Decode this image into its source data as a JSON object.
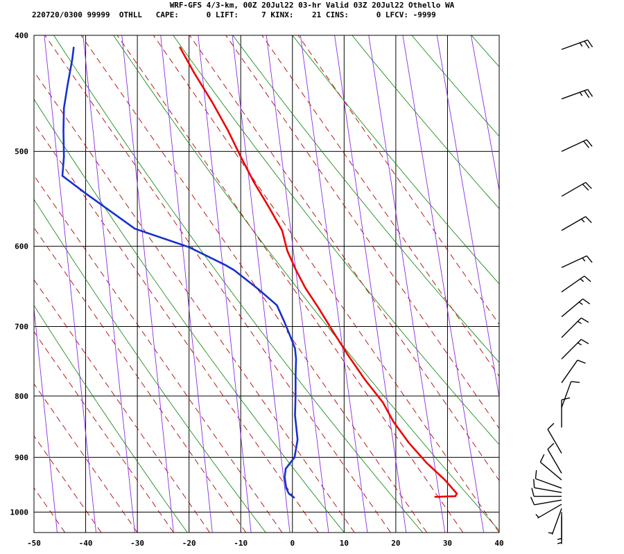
{
  "header": {
    "line1": "WRF-GFS 4/3-km, 00Z 20Jul22 03-hr Valid 03Z 20Jul22 Othello WA",
    "line2": "220720/0300 99999  OTHLL   CAPE:      0 LIFT:     7 KINX:    21 CINS:      0 LFCV: -9999"
  },
  "chart_data": {
    "type": "line",
    "chart_kind": "skew-T log-P sounding diagram",
    "xlim": [
      -50,
      40
    ],
    "ylim_pressure": [
      1040,
      400
    ],
    "y_scale": "log",
    "grid": true,
    "x_ticks": [
      "-50",
      "-40",
      "-30",
      "-20",
      "-10",
      "0",
      "10",
      "20",
      "30",
      "40"
    ],
    "y_ticks": [
      "400",
      "500",
      "600",
      "700",
      "800",
      "900",
      "1000"
    ],
    "series": [
      {
        "color": "#ee0000",
        "points": [
          {
            "t": 27.5,
            "p": 971
          },
          {
            "t": 31.5,
            "p": 970
          },
          {
            "t": 31.8,
            "p": 965
          },
          {
            "t": 29.5,
            "p": 940
          },
          {
            "t": 26.0,
            "p": 910
          },
          {
            "t": 22.5,
            "p": 875
          },
          {
            "t": 19.5,
            "p": 840
          },
          {
            "t": 17.5,
            "p": 810
          },
          {
            "t": 14.0,
            "p": 775
          },
          {
            "t": 10.8,
            "p": 740
          },
          {
            "t": 7.7,
            "p": 705
          },
          {
            "t": 5.0,
            "p": 675
          },
          {
            "t": 2.5,
            "p": 650
          },
          {
            "t": 0.6,
            "p": 627
          },
          {
            "t": -1.0,
            "p": 605
          },
          {
            "t": -2.0,
            "p": 582
          },
          {
            "t": -4.5,
            "p": 557
          },
          {
            "t": -7.5,
            "p": 530
          },
          {
            "t": -10.0,
            "p": 505
          },
          {
            "t": -12.5,
            "p": 480
          },
          {
            "t": -15.5,
            "p": 455
          },
          {
            "t": -19.0,
            "p": 430
          },
          {
            "t": -21.8,
            "p": 409
          }
        ]
      },
      {
        "color": "#1530d0",
        "points": [
          {
            "t": 0.4,
            "p": 973
          },
          {
            "t": -0.7,
            "p": 965
          },
          {
            "t": -1.2,
            "p": 955
          },
          {
            "t": -1.5,
            "p": 935
          },
          {
            "t": -1.3,
            "p": 920
          },
          {
            "t": 0.4,
            "p": 900
          },
          {
            "t": 1.0,
            "p": 870
          },
          {
            "t": 0.5,
            "p": 830
          },
          {
            "t": 0.6,
            "p": 800
          },
          {
            "t": 0.6,
            "p": 770
          },
          {
            "t": 0.7,
            "p": 745
          },
          {
            "t": 0.5,
            "p": 730
          },
          {
            "t": -0.6,
            "p": 710
          },
          {
            "t": -1.6,
            "p": 693
          },
          {
            "t": -3.0,
            "p": 672
          },
          {
            "t": -6.5,
            "p": 652
          },
          {
            "t": -11.3,
            "p": 628
          },
          {
            "t": -13.0,
            "p": 622
          },
          {
            "t": -20.0,
            "p": 601
          },
          {
            "t": -30.5,
            "p": 580
          },
          {
            "t": -40.0,
            "p": 542
          },
          {
            "t": -44.5,
            "p": 524
          },
          {
            "t": -44.2,
            "p": 505
          },
          {
            "t": -44.3,
            "p": 480
          },
          {
            "t": -44.2,
            "p": 460
          },
          {
            "t": -43.5,
            "p": 440
          },
          {
            "t": -42.6,
            "p": 419
          },
          {
            "t": -42.3,
            "p": 409
          }
        ]
      }
    ],
    "wind_barbs": [
      {
        "p": 411,
        "dir": 250,
        "spd": 25
      },
      {
        "p": 452,
        "dir": 250,
        "spd": 25
      },
      {
        "p": 500,
        "dir": 245,
        "spd": 20
      },
      {
        "p": 545,
        "dir": 240,
        "spd": 20
      },
      {
        "p": 582,
        "dir": 240,
        "spd": 15
      },
      {
        "p": 625,
        "dir": 245,
        "spd": 15
      },
      {
        "p": 655,
        "dir": 235,
        "spd": 15
      },
      {
        "p": 687,
        "dir": 230,
        "spd": 15
      },
      {
        "p": 715,
        "dir": 225,
        "spd": 15
      },
      {
        "p": 745,
        "dir": 225,
        "spd": 15
      },
      {
        "p": 780,
        "dir": 215,
        "spd": 10
      },
      {
        "p": 818,
        "dir": 200,
        "spd": 10
      },
      {
        "p": 850,
        "dir": 180,
        "spd": 10
      },
      {
        "p": 893,
        "dir": 150,
        "spd": 10
      },
      {
        "p": 928,
        "dir": 150,
        "spd": 10
      },
      {
        "p": 940,
        "dir": 130,
        "spd": 10
      },
      {
        "p": 955,
        "dir": 110,
        "spd": 10
      },
      {
        "p": 963,
        "dir": 100,
        "spd": 10
      },
      {
        "p": 970,
        "dir": 90,
        "spd": 10
      },
      {
        "p": 977,
        "dir": 80,
        "spd": 10
      },
      {
        "p": 985,
        "dir": 60,
        "spd": 5
      },
      {
        "p": 993,
        "dir": 20,
        "spd": 5
      },
      {
        "p": 1000,
        "dir": 0,
        "spd": 5
      },
      {
        "p": 1008,
        "dir": 0,
        "spd": 5
      }
    ],
    "reference_lines": {
      "isotherm_color": "#000000",
      "dry_adiabat_color": "#008000",
      "moist_adiabat_color": "#8a2be2",
      "mixing_ratio_color": "#b00000"
    }
  }
}
